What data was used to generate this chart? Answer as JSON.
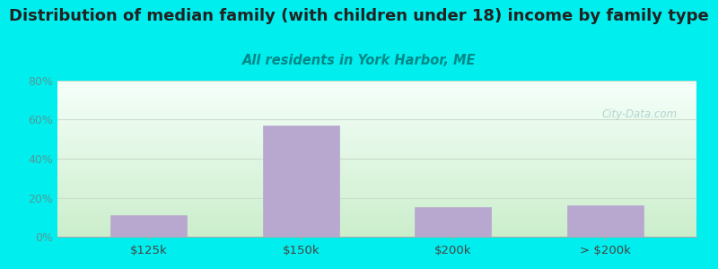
{
  "categories": [
    "$125k",
    "$150k",
    "$200k",
    "> $200k"
  ],
  "values": [
    11,
    57,
    15,
    16
  ],
  "bar_color": "#b8a8d0",
  "title": "Distribution of median family (with children under 18) income by family type",
  "subtitle": "All residents in York Harbor, ME",
  "subtitle_color": "#008888",
  "title_color": "#222222",
  "background_color": "#00eeee",
  "plot_bg_top": "#f5fffa",
  "plot_bg_bottom": "#cceecc",
  "ylim": [
    0,
    80
  ],
  "yticks": [
    0,
    20,
    40,
    60,
    80
  ],
  "ytick_labels": [
    "0%",
    "20%",
    "40%",
    "60%",
    "80%"
  ],
  "title_fontsize": 13,
  "subtitle_fontsize": 10.5,
  "grid_color": "#ccddcc",
  "tick_color": "#559999",
  "watermark": "City-Data.com",
  "watermark_color": "#aacccc"
}
